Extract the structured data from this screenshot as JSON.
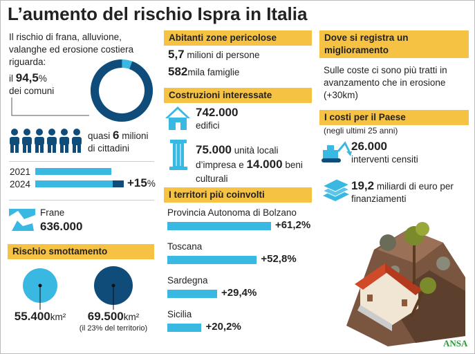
{
  "header": {
    "title": "L’aumento del rischio Ispra in Italia"
  },
  "left": {
    "intro": "Il rischio di frana, alluvione, valanghe ed erosione costiera riguarda:",
    "comuni": {
      "prefix": "il",
      "value": 94.5,
      "value_label": "94,5",
      "unit": "%",
      "suffix": "dei comuni"
    },
    "citizens": {
      "prefix": "quasi",
      "number": "6",
      "suffix": "milioni",
      "line2": "di cittadini"
    },
    "years": [
      "2021",
      "2024"
    ],
    "increase": {
      "number": "+15",
      "unit": "%"
    },
    "frane": {
      "label": "Frane",
      "value": "636.000"
    },
    "smottamento": {
      "title": "Rischio smottamento",
      "areas": [
        {
          "value": 55400,
          "value_label": "55.400",
          "unit": "km²"
        },
        {
          "value": 69500,
          "value_label": "69.500",
          "unit": "km²",
          "note": "(il 23% del territorio)"
        }
      ]
    }
  },
  "middle": {
    "abitanti": {
      "title": "Abitanti zone pericolose",
      "rows": [
        {
          "number": "5,7",
          "text": "milioni di persone"
        },
        {
          "number": "582",
          "text": "mila famiglie"
        }
      ]
    },
    "costruzioni": {
      "title": "Costruzioni interessate",
      "edifici": {
        "number": "742.000",
        "text": "edifici"
      },
      "unita": {
        "number1": "75.000",
        "text1": "unità locali d’impresa e",
        "number2": "14.000",
        "text2": "beni culturali"
      }
    },
    "territori": {
      "title": "I territori più coinvolti",
      "regions": [
        {
          "name": "Provincia Autonoma di Bolzano",
          "value": 61.2,
          "value_label": "+61,2%"
        },
        {
          "name": "Toscana",
          "value": 52.8,
          "value_label": "+52,8%"
        },
        {
          "name": "Sardegna",
          "value": 29.4,
          "value_label": "+29,4%"
        },
        {
          "name": "Sicilia",
          "value": 20.2,
          "value_label": "+20,2%"
        }
      ]
    }
  },
  "right": {
    "miglioramento": {
      "title": "Dove si registra un miglioramento",
      "text": "Sulle coste ci sono più tratti in avanzamento che in erosione (+30km)"
    },
    "costi": {
      "title": "I costi per il Paese",
      "note": "(negli ultimi 25 anni)",
      "interventi": {
        "number": "26.000",
        "text": "interventi censiti"
      },
      "miliardi": {
        "number": "19,2",
        "text": "miliardi di euro per finanziamenti"
      }
    }
  },
  "source": "ANSA"
}
